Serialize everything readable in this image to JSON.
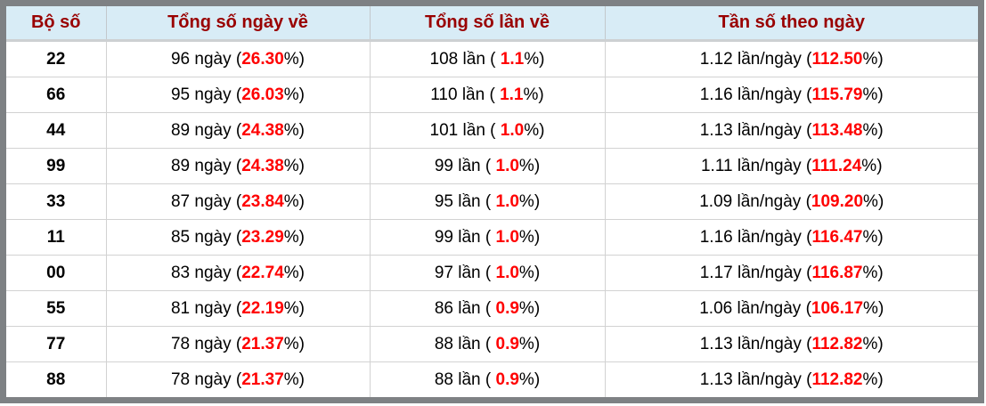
{
  "colors": {
    "header_bg": "#d8ecf6",
    "header_text": "#990000",
    "highlight_red": "#ff0000",
    "outer_border": "#7e8184",
    "cell_border": "#d2d2d2"
  },
  "table": {
    "headers": [
      "Bộ số",
      "Tổng số ngày về",
      "Tổng số lần về",
      "Tần số theo ngày"
    ],
    "rows": [
      {
        "pair": "22",
        "days_prefix": "96 ngày (",
        "days_value": "26.30",
        "days_suffix": "%)",
        "times_prefix": "108 lần ( ",
        "times_value": "1.1",
        "times_suffix": "%)",
        "freq_prefix": "1.12 lần/ngày (",
        "freq_value": "112.50",
        "freq_suffix": "%)"
      },
      {
        "pair": "66",
        "days_prefix": "95 ngày (",
        "days_value": "26.03",
        "days_suffix": "%)",
        "times_prefix": "110 lần ( ",
        "times_value": "1.1",
        "times_suffix": "%)",
        "freq_prefix": "1.16 lần/ngày (",
        "freq_value": "115.79",
        "freq_suffix": "%)"
      },
      {
        "pair": "44",
        "days_prefix": "89 ngày (",
        "days_value": "24.38",
        "days_suffix": "%)",
        "times_prefix": "101 lần ( ",
        "times_value": "1.0",
        "times_suffix": "%)",
        "freq_prefix": "1.13 lần/ngày (",
        "freq_value": "113.48",
        "freq_suffix": "%)"
      },
      {
        "pair": "99",
        "days_prefix": "89 ngày (",
        "days_value": "24.38",
        "days_suffix": "%)",
        "times_prefix": "99 lần ( ",
        "times_value": "1.0",
        "times_suffix": "%)",
        "freq_prefix": "1.11 lần/ngày (",
        "freq_value": "111.24",
        "freq_suffix": "%)"
      },
      {
        "pair": "33",
        "days_prefix": "87 ngày (",
        "days_value": "23.84",
        "days_suffix": "%)",
        "times_prefix": "95 lần ( ",
        "times_value": "1.0",
        "times_suffix": "%)",
        "freq_prefix": "1.09 lần/ngày (",
        "freq_value": "109.20",
        "freq_suffix": "%)"
      },
      {
        "pair": "11",
        "days_prefix": "85 ngày (",
        "days_value": "23.29",
        "days_suffix": "%)",
        "times_prefix": "99 lần ( ",
        "times_value": "1.0",
        "times_suffix": "%)",
        "freq_prefix": "1.16 lần/ngày (",
        "freq_value": "116.47",
        "freq_suffix": "%)"
      },
      {
        "pair": "00",
        "days_prefix": "83 ngày (",
        "days_value": "22.74",
        "days_suffix": "%)",
        "times_prefix": "97 lần ( ",
        "times_value": "1.0",
        "times_suffix": "%)",
        "freq_prefix": "1.17 lần/ngày (",
        "freq_value": "116.87",
        "freq_suffix": "%)"
      },
      {
        "pair": "55",
        "days_prefix": "81 ngày (",
        "days_value": "22.19",
        "days_suffix": "%)",
        "times_prefix": "86 lần ( ",
        "times_value": "0.9",
        "times_suffix": "%)",
        "freq_prefix": "1.06 lần/ngày (",
        "freq_value": "106.17",
        "freq_suffix": "%)"
      },
      {
        "pair": "77",
        "days_prefix": "78 ngày (",
        "days_value": "21.37",
        "days_suffix": "%)",
        "times_prefix": "88 lần ( ",
        "times_value": "0.9",
        "times_suffix": "%)",
        "freq_prefix": "1.13 lần/ngày (",
        "freq_value": "112.82",
        "freq_suffix": "%)"
      },
      {
        "pair": "88",
        "days_prefix": "78 ngày (",
        "days_value": "21.37",
        "days_suffix": "%)",
        "times_prefix": "88 lần ( ",
        "times_value": "0.9",
        "times_suffix": "%)",
        "freq_prefix": "1.13 lần/ngày (",
        "freq_value": "112.82",
        "freq_suffix": "%)"
      }
    ]
  },
  "chart_data": {
    "type": "table",
    "columns": [
      "Bộ số",
      "Tổng số ngày về",
      "Tổng số lần về",
      "Tần số theo ngày"
    ],
    "rows": [
      [
        "22",
        "96 ngày (26.30%)",
        "108 lần ( 1.1%)",
        "1.12 lần/ngày (112.50%)"
      ],
      [
        "66",
        "95 ngày (26.03%)",
        "110 lần ( 1.1%)",
        "1.16 lần/ngày (115.79%)"
      ],
      [
        "44",
        "89 ngày (24.38%)",
        "101 lần ( 1.0%)",
        "1.13 lần/ngày (113.48%)"
      ],
      [
        "99",
        "89 ngày (24.38%)",
        "99 lần ( 1.0%)",
        "1.11 lần/ngày (111.24%)"
      ],
      [
        "33",
        "87 ngày (23.84%)",
        "95 lần ( 1.0%)",
        "1.09 lần/ngày (109.20%)"
      ],
      [
        "11",
        "85 ngày (23.29%)",
        "99 lần ( 1.0%)",
        "1.16 lần/ngày (116.47%)"
      ],
      [
        "00",
        "83 ngày (22.74%)",
        "97 lần ( 1.0%)",
        "1.17 lần/ngày (116.87%)"
      ],
      [
        "55",
        "81 ngày (22.19%)",
        "86 lần ( 0.9%)",
        "1.06 lần/ngày (106.17%)"
      ],
      [
        "77",
        "78 ngày (21.37%)",
        "88 lần ( 0.9%)",
        "1.13 lần/ngày (112.82%)"
      ],
      [
        "88",
        "78 ngày (21.37%)",
        "88 lần ( 0.9%)",
        "1.13 lần/ngày (112.82%)"
      ]
    ]
  }
}
